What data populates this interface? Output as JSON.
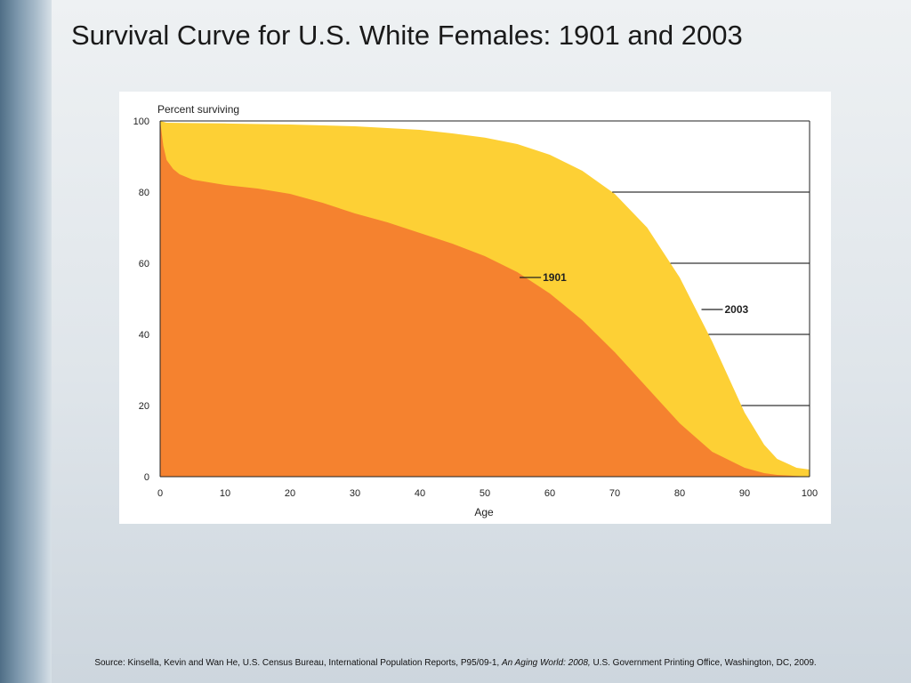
{
  "slide": {
    "title": "Survival Curve for U.S. White Females: 1901 and 2003",
    "source_prefix": "Source: Kinsella, Kevin and Wan He, U.S. Census Bureau, International Population Reports, P95/09-1, ",
    "source_italic": "An Aging World: 2008,",
    "source_suffix": " U.S. Government Printing Office, Washington, DC, 2009."
  },
  "colors": {
    "series_2003": "#fdd035",
    "series_1901": "#f5822f",
    "gridline": "#000000",
    "axis": "#222222"
  },
  "chart_data": {
    "type": "area",
    "ylabel": "Percent surviving",
    "xlabel": "Age",
    "xlim": [
      0,
      100
    ],
    "ylim": [
      0,
      100
    ],
    "x_ticks": [
      0,
      10,
      20,
      30,
      40,
      50,
      60,
      70,
      80,
      90,
      100
    ],
    "y_ticks": [
      0,
      20,
      40,
      60,
      80,
      100
    ],
    "grid": "horizontal, right side",
    "series": [
      {
        "name": "2003",
        "x": [
          0,
          1,
          5,
          10,
          20,
          30,
          40,
          45,
          50,
          55,
          60,
          65,
          70,
          75,
          80,
          85,
          88,
          90,
          93,
          95,
          98,
          100
        ],
        "y": [
          100,
          99.5,
          99.4,
          99.3,
          99.0,
          98.5,
          97.5,
          96.5,
          95.3,
          93.5,
          90.5,
          86,
          79.5,
          70,
          56,
          38,
          26,
          18,
          9,
          5,
          2.5,
          2
        ],
        "label_at": [
          85,
          47
        ]
      },
      {
        "name": "1901",
        "x": [
          0,
          0.5,
          1,
          2,
          3,
          5,
          10,
          15,
          20,
          25,
          30,
          35,
          40,
          45,
          50,
          55,
          60,
          65,
          70,
          75,
          80,
          85,
          90,
          93,
          95,
          98,
          100
        ],
        "y": [
          100,
          93,
          89,
          86.5,
          85,
          83.5,
          82,
          81,
          79.5,
          77,
          74,
          71.5,
          68.5,
          65.5,
          62,
          57.5,
          51.5,
          44,
          35,
          25,
          15,
          7,
          2.5,
          1,
          0.5,
          0.2,
          0
        ],
        "label_at": [
          57,
          56
        ]
      }
    ]
  }
}
